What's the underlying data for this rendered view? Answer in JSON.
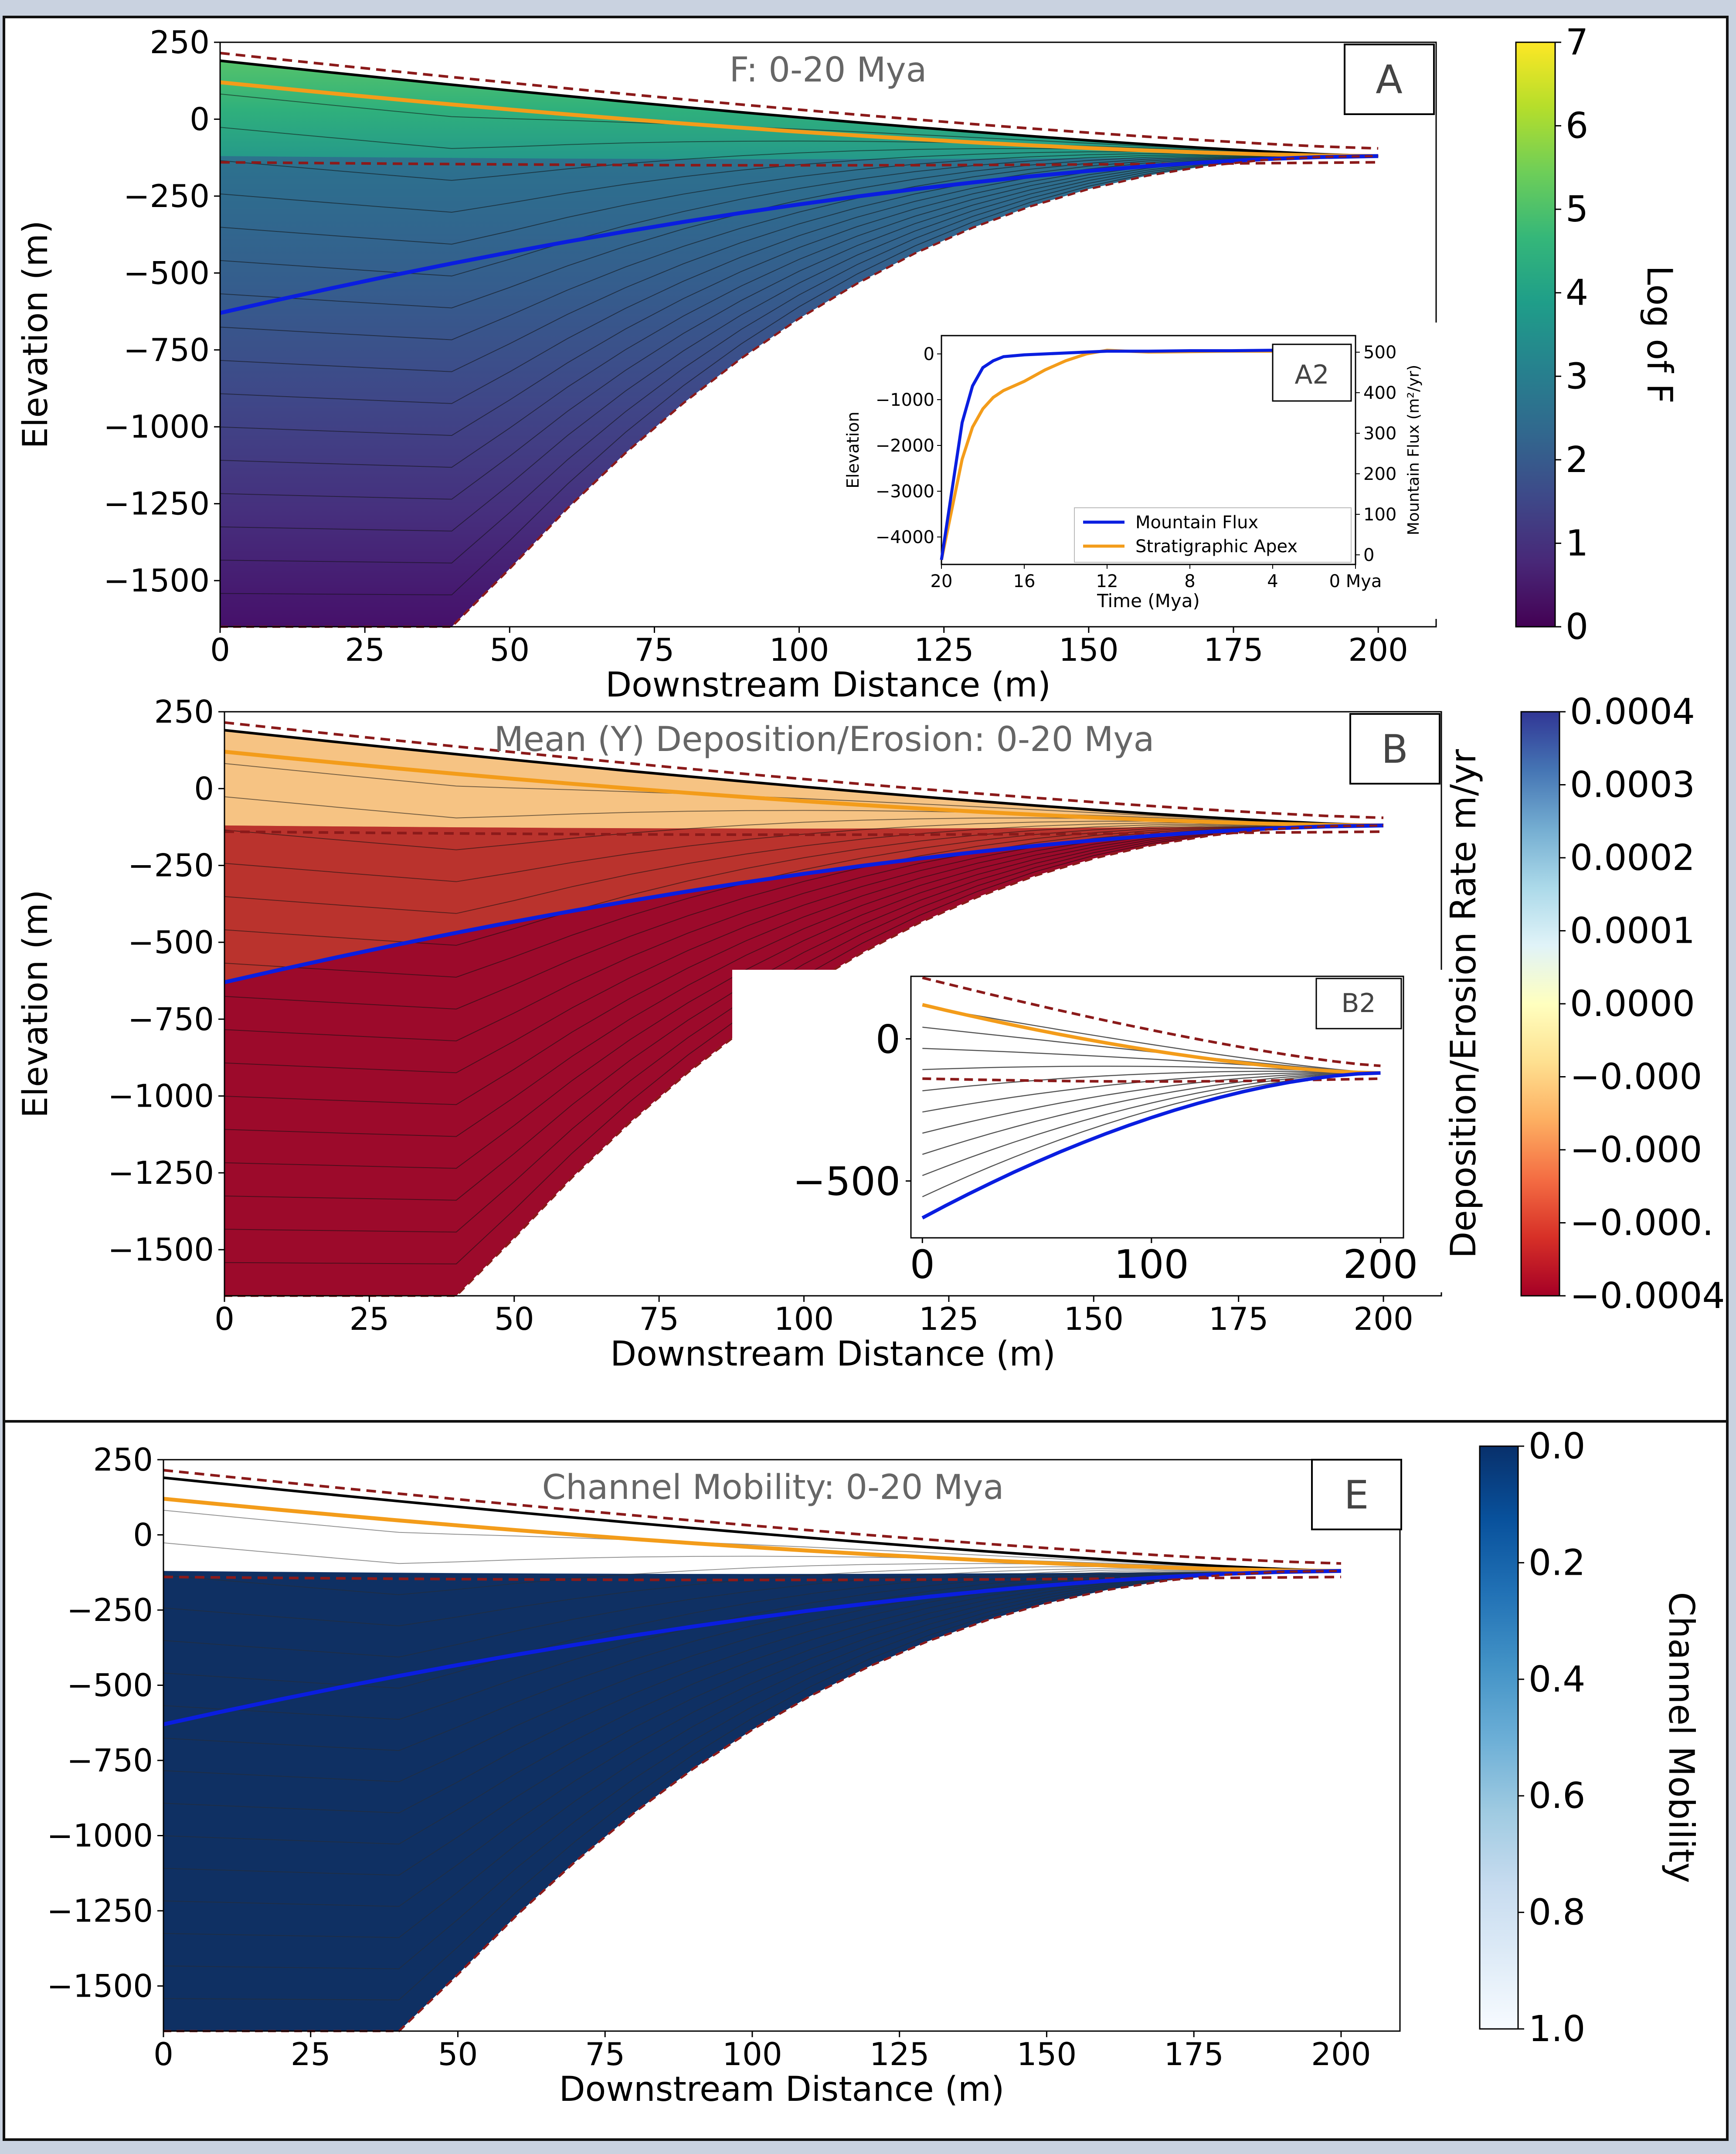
{
  "colors": {
    "frame_border": "#111111",
    "page_background": "#c9d2e0",
    "stratigraphic_apex_line": "#0a1ee0",
    "mountain_flux_line": "#f39c1a",
    "dashed_boundary": "#8b1a1a",
    "timeline": "#000000",
    "viridis": [
      "#440154",
      "#482878",
      "#3e4989",
      "#31688e",
      "#26828e",
      "#1f9e89",
      "#35b779",
      "#6ece58",
      "#b5de2b",
      "#fde725"
    ],
    "rdylbu": [
      "#a50026",
      "#d73027",
      "#f46d43",
      "#fdae61",
      "#fee090",
      "#ffffbf",
      "#e0f3f8",
      "#abd9e9",
      "#74add1",
      "#4575b4",
      "#313695"
    ],
    "blues": [
      "#f7fbff",
      "#deebf7",
      "#c6dbef",
      "#9ecae1",
      "#6baed6",
      "#4292c6",
      "#2171b5",
      "#08519c",
      "#08306b"
    ]
  },
  "chart_data": [
    {
      "type": "heatmap",
      "panel_label": "A",
      "title": "F: 0-20 Mya",
      "xlabel": "Downstream Distance (m)",
      "ylabel": "Elevation (m)",
      "xlim": [
        0,
        210
      ],
      "ylim": [
        -1650,
        250
      ],
      "xticks": [
        "0",
        "25",
        "50",
        "75",
        "100",
        "125",
        "150",
        "175",
        "200"
      ],
      "yticks": [
        "250",
        "0",
        "−250",
        "−500",
        "−750",
        "−1000",
        "−1250",
        "−1500"
      ],
      "colorbar": {
        "label": "Log of F",
        "ticks": [
          "0",
          "1",
          "2",
          "3",
          "4",
          "5",
          "6",
          "7"
        ],
        "range": [
          0,
          7
        ],
        "colormap": "viridis"
      },
      "grid": false,
      "inset": {
        "panel_label": "A2",
        "type": "line",
        "xlabel": "Time (Mya)",
        "ylabel": "Elevation",
        "y2label": "Mountain Flux (m²/yr)",
        "xticks": [
          "20",
          "16",
          "12",
          "8",
          "4",
          "0 Mya"
        ],
        "yticks": [
          "0",
          "−1000",
          "−2000",
          "−3000",
          "−4000"
        ],
        "y2ticks": [
          "0",
          "100",
          "200",
          "300",
          "400",
          "500"
        ],
        "xlim": [
          20,
          0
        ],
        "ylim": [
          -4600,
          400
        ],
        "legend": "bottom-right",
        "series": [
          {
            "name": "Mountain Flux",
            "x": [
              20,
              19.5,
              19,
              18.5,
              18,
              17.5,
              17,
              16,
              15,
              14,
              13,
              12,
              10,
              8,
              6,
              4,
              2,
              0.5
            ],
            "y": [
              -4500,
              -3000,
              -1500,
              -700,
              -300,
              -150,
              -60,
              -20,
              0,
              20,
              40,
              60,
              60,
              70,
              70,
              80,
              80,
              80
            ]
          },
          {
            "name": "Stratigraphic Apex",
            "x": [
              20,
              19.5,
              19,
              18.5,
              18,
              17.5,
              17,
              16.5,
              16,
              15,
              14,
              13,
              12.5,
              12,
              11,
              10,
              8,
              6,
              4,
              2,
              0.5
            ],
            "y": [
              -4500,
              -3400,
              -2300,
              -1600,
              -1200,
              -950,
              -800,
              -700,
              -600,
              -350,
              -150,
              0,
              40,
              80,
              60,
              40,
              50,
              60,
              60,
              70,
              70
            ]
          }
        ]
      }
    },
    {
      "type": "heatmap",
      "panel_label": "B",
      "title": "Mean (Y) Deposition/Erosion: 0-20 Mya",
      "xlabel": "Downstream Distance (m)",
      "ylabel": "Elevation (m)",
      "xlim": [
        0,
        210
      ],
      "ylim": [
        -1650,
        250
      ],
      "xticks": [
        "0",
        "25",
        "50",
        "75",
        "100",
        "125",
        "150",
        "175",
        "200"
      ],
      "yticks": [
        "250",
        "0",
        "−250",
        "−500",
        "−750",
        "−1000",
        "−1250",
        "−1500"
      ],
      "colorbar": {
        "label": "Deposition/Erosion Rate m/yr",
        "ticks": [
          "0.0004",
          "0.0003",
          "0.0002",
          "0.0001",
          "0.0000",
          "−0.000",
          "−0.000",
          "−0.000.",
          "−0.0004"
        ],
        "range": [
          -0.0004,
          0.0004
        ],
        "colormap": "RdYlBu"
      },
      "grid": false,
      "inset": {
        "panel_label": "B2",
        "type": "line",
        "xticks": [
          "0",
          "100",
          "200"
        ],
        "yticks": [
          "0",
          "−500"
        ],
        "xlim": [
          -5,
          210
        ],
        "ylim": [
          -700,
          220
        ]
      }
    },
    {
      "type": "heatmap",
      "panel_label": "E",
      "title": "Channel Mobility: 0-20 Mya",
      "xlabel": "Downstream Distance (m)",
      "ylabel": "",
      "xlim": [
        0,
        210
      ],
      "ylim": [
        -1650,
        250
      ],
      "xticks": [
        "0",
        "25",
        "50",
        "75",
        "100",
        "125",
        "150",
        "175",
        "200"
      ],
      "yticks": [
        "250",
        "0",
        "−250",
        "−500",
        "−750",
        "−1000",
        "−1250",
        "−1500"
      ],
      "colorbar": {
        "label": "Channel Mobility",
        "ticks": [
          "1.0",
          "0.8",
          "0.6",
          "0.4",
          "0.2",
          "0.0"
        ],
        "range": [
          0,
          1
        ],
        "colormap": "Blues"
      },
      "grid": false
    }
  ]
}
